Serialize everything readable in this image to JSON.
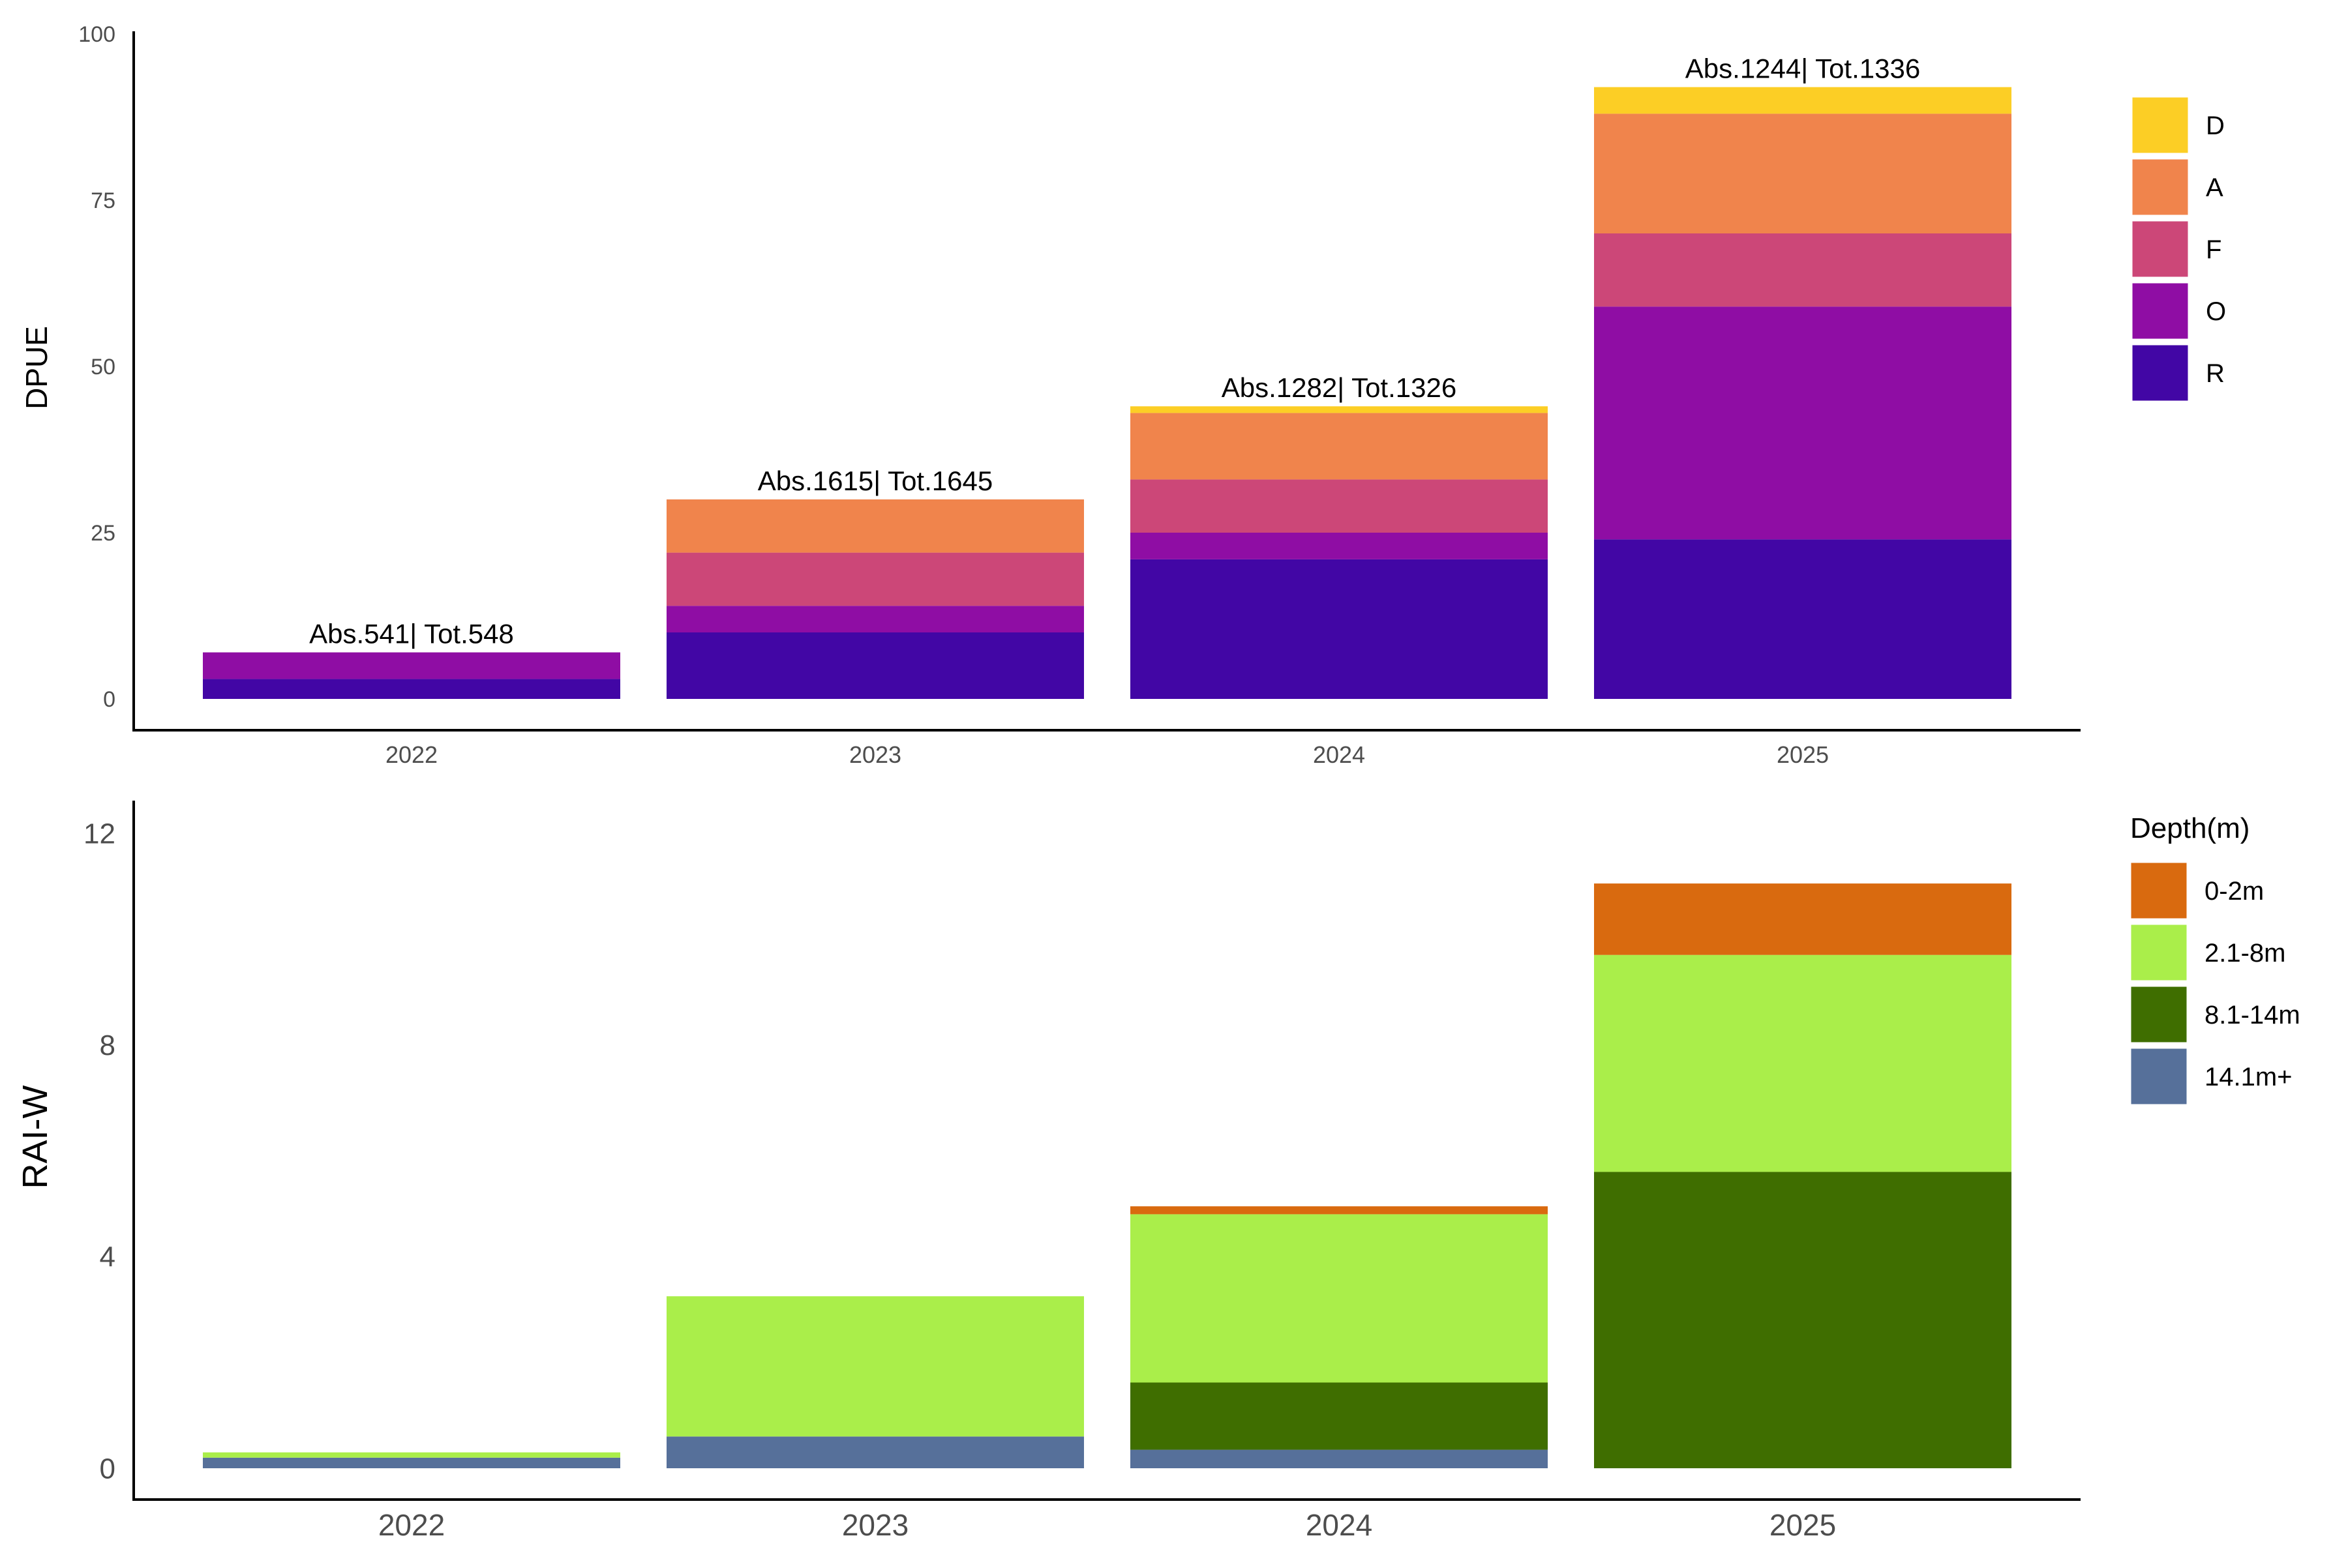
{
  "chart_data": [
    {
      "type": "bar",
      "stacked": true,
      "title": "",
      "xlabel": "",
      "ylabel": "DPUE",
      "ylim": [
        0,
        100
      ],
      "yticks": [
        0,
        25,
        50,
        75,
        100
      ],
      "grid": false,
      "legend_position": "right",
      "legend_title": "",
      "categories": [
        "2022",
        "2023",
        "2024",
        "2025"
      ],
      "series": [
        {
          "name": "R",
          "color": "#4206A5",
          "values": [
            3,
            10,
            21,
            24
          ]
        },
        {
          "name": "O",
          "color": "#8F0DA4",
          "values": [
            4,
            4,
            4,
            35
          ]
        },
        {
          "name": "F",
          "color": "#CC4778",
          "values": [
            0,
            8,
            8,
            11
          ]
        },
        {
          "name": "A",
          "color": "#F0844C",
          "values": [
            0,
            8,
            10,
            18
          ]
        },
        {
          "name": "D",
          "color": "#FCCE25",
          "values": [
            0,
            0,
            1,
            4
          ]
        }
      ],
      "bar_labels": [
        "Abs.541| Tot.548",
        "Abs.1615| Tot.1645",
        "Abs.1282| Tot.1326",
        "Abs.1244| Tot.1336"
      ]
    },
    {
      "type": "bar",
      "stacked": true,
      "title": "",
      "xlabel": "",
      "ylabel": "RAI-W",
      "ylim": [
        0,
        12.5
      ],
      "yticks": [
        0,
        4,
        8,
        12
      ],
      "grid": false,
      "legend_position": "right",
      "legend_title": "Depth(m)",
      "categories": [
        "2022",
        "2023",
        "2024",
        "2025"
      ],
      "series": [
        {
          "name": "14.1m+",
          "color": "#56709A",
          "values": [
            0.2,
            0.6,
            0.35,
            0
          ]
        },
        {
          "name": "8.1-14m",
          "color": "#3F6E00",
          "values": [
            0,
            0,
            1.27,
            5.6
          ]
        },
        {
          "name": "2.1-8m",
          "color": "#AAEE4A",
          "values": [
            0.1,
            2.65,
            3.18,
            4.1
          ]
        },
        {
          "name": "0-2m",
          "color": "#D96A0F",
          "values": [
            0,
            0,
            0.15,
            1.35
          ]
        }
      ],
      "bar_labels": []
    }
  ]
}
